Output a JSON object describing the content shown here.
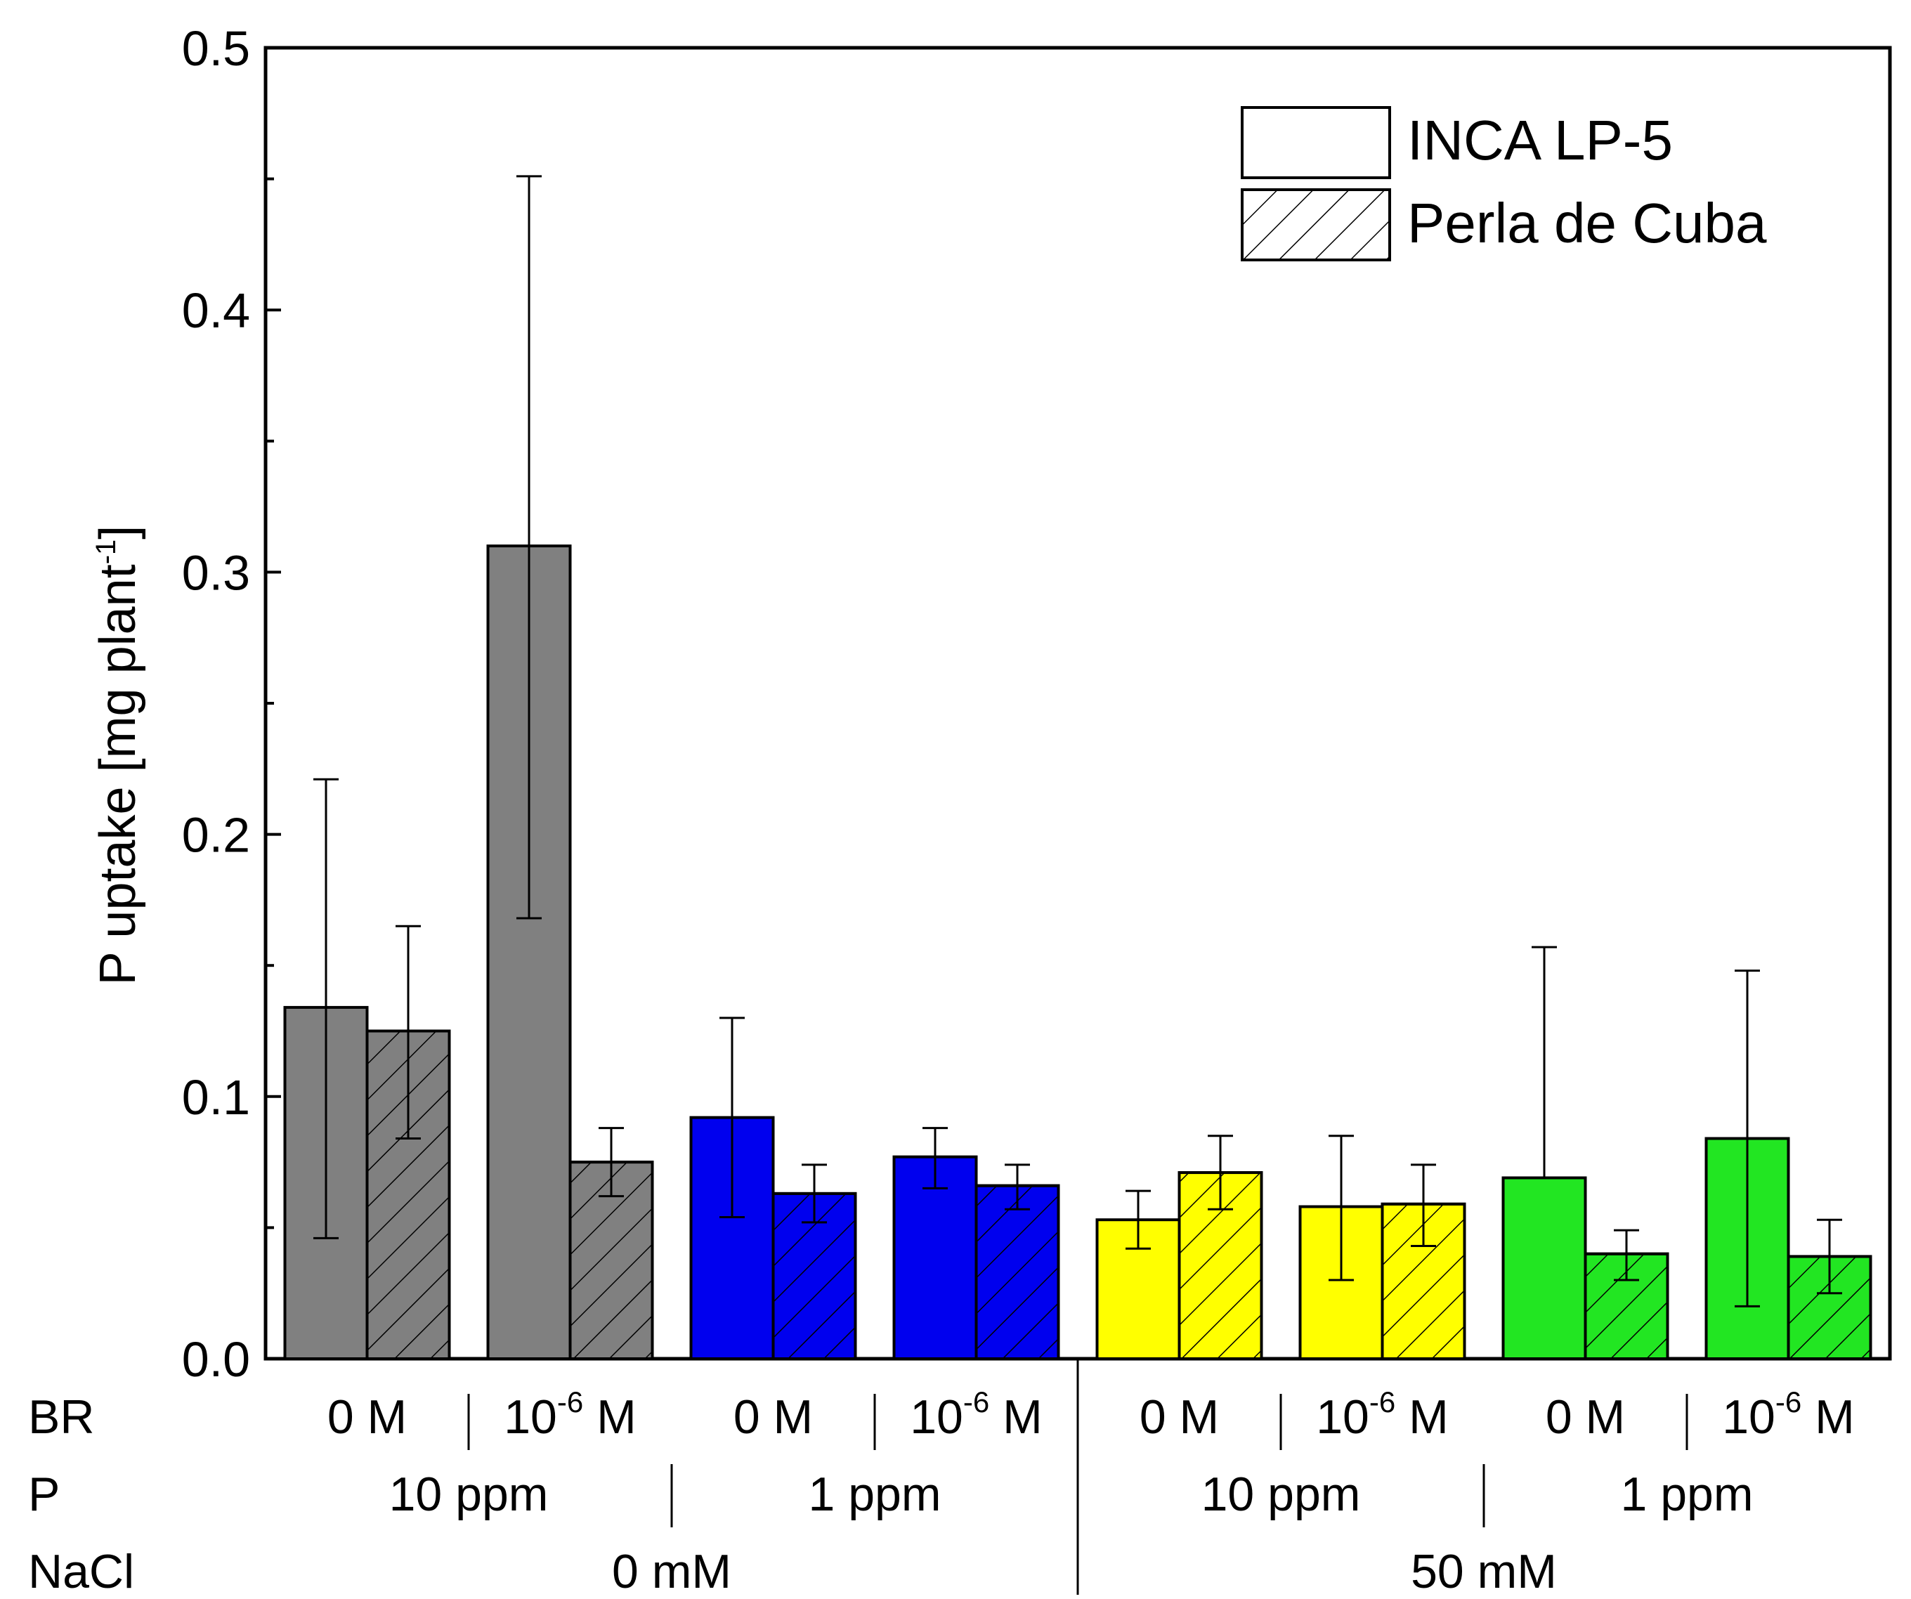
{
  "chart_data": {
    "type": "bar",
    "ylabel_main": "P uptake [mg plant",
    "ylabel_sup": "-1",
    "ylabel_close": "]",
    "ylim": [
      0,
      0.5
    ],
    "yticks": [
      "0.0",
      "0.1",
      "0.2",
      "0.3",
      "0.4",
      "0.5"
    ],
    "ytick_values": [
      0,
      0.1,
      0.2,
      0.3,
      0.4,
      0.5
    ],
    "legend": {
      "position": "top-right",
      "entries": [
        {
          "label": "INCA LP-5",
          "pattern": "solid"
        },
        {
          "label": "Perla de Cuba",
          "pattern": "hatched"
        }
      ]
    },
    "colors": {
      "gray": "#808080",
      "blue": "#0000ee",
      "yellow": "#ffff00",
      "green": "#22e622",
      "axis": "#000000"
    },
    "row_labels": {
      "br": "BR",
      "p": "P",
      "nacl": "NaCl"
    },
    "br_labels": [
      {
        "base": "0 M",
        "sup": ""
      },
      {
        "base": "10",
        "sup": "-6",
        "unit": " M"
      },
      {
        "base": "0 M",
        "sup": ""
      },
      {
        "base": "10",
        "sup": "-6",
        "unit": " M"
      },
      {
        "base": "0 M",
        "sup": ""
      },
      {
        "base": "10",
        "sup": "-6",
        "unit": " M"
      },
      {
        "base": "0 M",
        "sup": ""
      },
      {
        "base": "10",
        "sup": "-6",
        "unit": " M"
      }
    ],
    "p_labels": [
      "10 ppm",
      "1 ppm",
      "10 ppm",
      "1 ppm"
    ],
    "nacl_labels": [
      "0 mM",
      "50 mM"
    ],
    "series": [
      {
        "name": "INCA LP-5",
        "values": [
          0.134,
          0.31,
          0.092,
          0.077,
          0.053,
          0.058,
          0.069,
          0.084
        ],
        "err_high": [
          0.221,
          0.451,
          0.13,
          0.088,
          0.064,
          0.085,
          0.157,
          0.148
        ],
        "err_low": [
          0.046,
          0.168,
          0.054,
          0.065,
          0.042,
          0.03,
          0.069,
          0.02
        ]
      },
      {
        "name": "Perla de Cuba",
        "values": [
          0.125,
          0.075,
          0.063,
          0.066,
          0.071,
          0.059,
          0.04,
          0.039
        ],
        "err_high": [
          0.165,
          0.088,
          0.074,
          0.074,
          0.085,
          0.074,
          0.049,
          0.053
        ],
        "err_low": [
          0.084,
          0.062,
          0.052,
          0.057,
          0.057,
          0.043,
          0.03,
          0.025
        ]
      }
    ],
    "group_colors": [
      "gray",
      "gray",
      "blue",
      "blue",
      "yellow",
      "yellow",
      "green",
      "green"
    ]
  }
}
